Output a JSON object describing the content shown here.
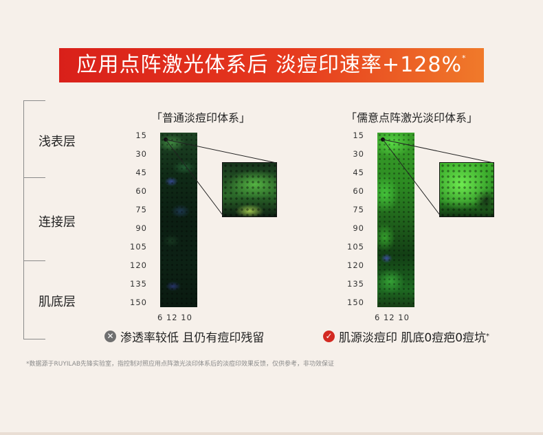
{
  "banner": {
    "title": "应用点阵激光体系后  淡痘印速率+128%",
    "mark": "*"
  },
  "layers": [
    "浅表层",
    "连接层",
    "肌底层"
  ],
  "columns": [
    {
      "title": "「普通淡痘印体系」",
      "variant": "dim"
    },
    {
      "title": "「儒意点阵激光淡印体系」",
      "variant": "bright"
    }
  ],
  "axis": {
    "y_ticks": [
      "15",
      "30",
      "45",
      "60",
      "75",
      "90",
      "105",
      "120",
      "135",
      "150"
    ],
    "x_ticks": "6  12 10"
  },
  "notes": {
    "left": {
      "icon": "x-circle-icon",
      "text": "渗透率较低 且仍有痘印残留"
    },
    "right": {
      "icon": "check-circle-icon",
      "text": "肌源淡痘印 肌底0痘疤0痘坑",
      "mark": "*"
    }
  },
  "disclaimer": "*数据源于RUYILAB先锋实验室，指控制对照应用点阵激光淡印体系后的淡痘印效果反馈，仅供参考，非功效保证",
  "colors": {
    "banner_start": "#d9201a",
    "banner_end": "#f07a2a",
    "check": "#d32a22",
    "cross": "#6f6f6f"
  }
}
